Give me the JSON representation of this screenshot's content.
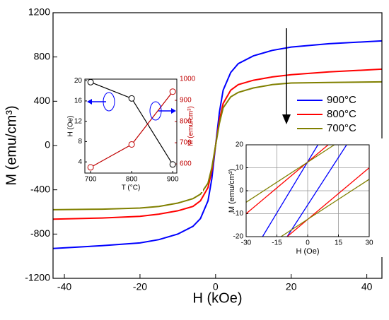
{
  "chart_data": [
    {
      "type": "line",
      "xlabel": "H (kOe)",
      "ylabel": "M (emu/cm³)",
      "x": [
        -43,
        -30,
        -20,
        -15,
        -10,
        -6,
        -4,
        -2,
        -1,
        0,
        1,
        2,
        4,
        6,
        10,
        15,
        20,
        30,
        44
      ],
      "series": [
        {
          "name": "900°C",
          "color": "#0000ff",
          "values": [
            -930,
            -905,
            -880,
            -850,
            -800,
            -730,
            -660,
            -500,
            -300,
            0,
            300,
            500,
            660,
            740,
            810,
            860,
            890,
            920,
            945
          ]
        },
        {
          "name": "800°C",
          "color": "#ff0000",
          "values": [
            -665,
            -655,
            -640,
            -620,
            -590,
            -550,
            -500,
            -380,
            -230,
            0,
            230,
            380,
            500,
            550,
            590,
            620,
            640,
            665,
            690
          ]
        },
        {
          "name": "700°C",
          "color": "#808000",
          "values": [
            -580,
            -575,
            -565,
            -550,
            -520,
            -480,
            -440,
            -340,
            -200,
            0,
            200,
            340,
            440,
            480,
            520,
            550,
            565,
            570,
            575
          ]
        }
      ],
      "xlim": [
        -43,
        44
      ],
      "xticks": [
        -40,
        -20,
        0,
        20,
        40
      ],
      "ylim": [
        -1200,
        1200
      ],
      "yticks": [
        -1200,
        -800,
        -400,
        0,
        400,
        800,
        1200
      ],
      "legend": "upper right"
    },
    {
      "type": "line",
      "xlabel": "T (°C)",
      "ylabel": "H (Oe)",
      "y2label": "M (emu/cm³)",
      "markers": true,
      "x": [
        700,
        800,
        900
      ],
      "series": [
        {
          "color": "#000000",
          "values": [
            19.7,
            16.5,
            3.5
          ]
        },
        {
          "color": "#c00000",
          "axis": "y2",
          "values": [
            584,
            692,
            941
          ]
        }
      ],
      "xlim": [
        686,
        910
      ],
      "xticks": [
        700,
        800,
        900
      ],
      "ylim": [
        1.8,
        20.3
      ],
      "yticks": [
        4,
        8,
        12,
        16,
        20
      ],
      "y2lim": [
        557,
        1000
      ],
      "y2ticks": [
        600,
        700,
        800,
        900,
        1000
      ]
    },
    {
      "type": "line",
      "xlabel": "H (Oe)",
      "ylabel": "M (emu/cm³)",
      "grid": true,
      "series": [
        {
          "color": "#0000ff",
          "x": [
            -22,
            5,
            null,
            -10,
            19
          ],
          "values": [
            -20,
            20,
            null,
            -20,
            20
          ]
        },
        {
          "color": "#ff0000",
          "x": [
            -30,
            10,
            null,
            -10,
            30
          ],
          "values": [
            -10,
            20,
            null,
            -20,
            10
          ]
        },
        {
          "color": "#808000",
          "x": [
            -30,
            13,
            null,
            -13,
            30
          ],
          "values": [
            -5,
            20,
            null,
            -20,
            5
          ]
        }
      ],
      "xlim": [
        -30,
        30
      ],
      "xticks": [
        -30,
        -15,
        0,
        15,
        30
      ],
      "ylim": [
        -20,
        20
      ],
      "yticks": [
        -20,
        -10,
        0,
        10,
        20
      ]
    }
  ]
}
